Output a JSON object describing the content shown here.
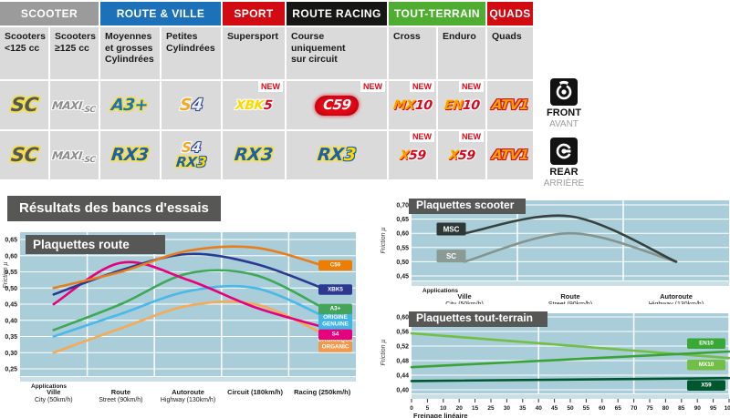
{
  "table": {
    "new_label": "NEW",
    "groups": [
      {
        "label": "SCOOTER",
        "color": "#9c9b9b",
        "span": 2
      },
      {
        "label": "ROUTE & VILLE",
        "color": "#1d71b8",
        "span": 2
      },
      {
        "label": "SPORT",
        "color": "#d20a11",
        "span": 1
      },
      {
        "label": "ROUTE RACING",
        "color": "#161615",
        "span": 1
      },
      {
        "label": "TOUT-TERRAIN",
        "color": "#4fae32",
        "span": 2
      },
      {
        "label": "QUADS",
        "color": "#d20a11",
        "span": 1
      }
    ],
    "subheaders": [
      [
        "Scooters",
        "<125 cc"
      ],
      [
        "Scooters",
        "≥125 cc"
      ],
      [
        "Moyennes",
        "et grosses",
        "Cylindrées"
      ],
      [
        "Petites",
        "Cylindrées"
      ],
      [
        "Supersport"
      ],
      [
        "Course",
        "uniquement",
        "sur circuit"
      ],
      [
        "Cross"
      ],
      [
        "Enduro"
      ],
      [
        "Quads"
      ]
    ],
    "front_row": [
      {
        "rows": [
          [
            {
              "t": "SC",
              "s": "sc"
            }
          ]
        ]
      },
      {
        "rows": [
          [
            {
              "t": "MAXI",
              "s": "maxi"
            },
            {
              "t": "-SC",
              "s": "maxisub"
            }
          ]
        ]
      },
      {
        "rows": [
          [
            {
              "t": "A3+",
              "s": "a3"
            }
          ]
        ]
      },
      {
        "rows": [
          [
            {
              "t": "S",
              "s": "s4s"
            },
            {
              "t": "4",
              "s": "s4f"
            }
          ]
        ]
      },
      {
        "rows": [
          [
            {
              "t": "XBK",
              "s": "xbk"
            },
            {
              "t": "5",
              "s": "red"
            }
          ]
        ],
        "new": true
      },
      {
        "rows": [
          [
            {
              "t": "C59",
              "s": "c59"
            }
          ]
        ],
        "new": true
      },
      {
        "rows": [
          [
            {
              "t": "MX",
              "s": "orange"
            },
            {
              "t": "10",
              "s": "red"
            }
          ]
        ],
        "new": true
      },
      {
        "rows": [
          [
            {
              "t": "EN",
              "s": "orange"
            },
            {
              "t": "10",
              "s": "red"
            }
          ]
        ],
        "new": true
      },
      {
        "rows": [
          [
            {
              "t": "ATV1",
              "s": "atv"
            }
          ]
        ]
      }
    ],
    "rear_row": [
      {
        "rows": [
          [
            {
              "t": "SC",
              "s": "sc"
            }
          ]
        ]
      },
      {
        "rows": [
          [
            {
              "t": "MAXI",
              "s": "maxi"
            },
            {
              "t": "-SC",
              "s": "maxisub"
            }
          ]
        ]
      },
      {
        "rows": [
          [
            {
              "t": "RX",
              "s": "rx"
            },
            {
              "t": "3",
              "s": "rx"
            }
          ]
        ]
      },
      {
        "rows": [
          [
            {
              "t": "S",
              "s": "s4s"
            },
            {
              "t": "4",
              "s": "s4f"
            }
          ],
          [
            {
              "t": "RX",
              "s": "rx"
            },
            {
              "t": "3",
              "s": "3y"
            }
          ]
        ],
        "stack": true
      },
      {
        "rows": [
          [
            {
              "t": "RX",
              "s": "rx"
            },
            {
              "t": "3",
              "s": "rx"
            }
          ]
        ]
      },
      {
        "rows": [
          [
            {
              "t": "RX",
              "s": "rx"
            },
            {
              "t": "3",
              "s": "3y"
            }
          ]
        ]
      },
      {
        "rows": [
          [
            {
              "t": "X",
              "s": "orange"
            },
            {
              "t": "59",
              "s": "red"
            }
          ]
        ],
        "new": true
      },
      {
        "rows": [
          [
            {
              "t": "X",
              "s": "orange"
            },
            {
              "t": "59",
              "s": "red"
            }
          ]
        ],
        "new": true
      },
      {
        "rows": [
          [
            {
              "t": "ATV1",
              "s": "atv"
            }
          ]
        ]
      }
    ]
  },
  "legend": {
    "front": {
      "label": "FRONT",
      "sub": "AVANT"
    },
    "rear": {
      "label": "REAR",
      "sub": "ARRIÈRE"
    }
  },
  "results_title": "Résultats des bancs d'essais",
  "chart_data": [
    {
      "id": "route",
      "type": "line",
      "title": "Plaquettes route",
      "ylabel": "Friction µ",
      "ymin": 0.25,
      "ymax": 0.65,
      "yticks": [
        "0,65",
        "0,60",
        "0,55",
        "0,50",
        "0,45",
        "0,40",
        "0,35",
        "0,30",
        "0,25"
      ],
      "x_mode": "category",
      "applications_label": "Applications",
      "categories": [
        [
          "Ville",
          "City (50km/h)"
        ],
        [
          "Route",
          "Street (90km/h)"
        ],
        [
          "Autoroute",
          "Highway (130km/h)"
        ],
        [
          "Circuit (180km/h)",
          ""
        ],
        [
          "Racing (250km/h)",
          ""
        ]
      ],
      "series": [
        {
          "name": "ORGANIQUE ORGANIC",
          "color": "#f5aa58",
          "label_bg": "#f39a4a",
          "label_lines": [
            "ORGANIQUE",
            "ORGANIC"
          ],
          "label_v": 0.328,
          "values": [
            0.3,
            0.375,
            0.445,
            0.45,
            0.36
          ]
        },
        {
          "name": "ORIGINE GENUINE",
          "color": "#4ab8e8",
          "label_bg": "#41b6e6",
          "label_lines": [
            "ORIGINE",
            "GENUINE"
          ],
          "label_v": 0.398,
          "values": [
            0.35,
            0.42,
            0.49,
            0.5,
            0.415
          ]
        },
        {
          "name": "A3+",
          "color": "#3fa857",
          "label_bg": "#44a45c",
          "label_lines": [
            "A3+"
          ],
          "label_v": 0.435,
          "values": [
            0.37,
            0.45,
            0.545,
            0.54,
            0.44
          ]
        },
        {
          "name": "S4",
          "color": "#e6007e",
          "label_bg": "#e6007e",
          "label_lines": [
            "S4"
          ],
          "label_v": 0.356,
          "values": [
            0.45,
            0.578,
            0.525,
            0.44,
            0.38
          ]
        },
        {
          "name": "XBK5",
          "color": "#2b3990",
          "label_bg": "#2b3990",
          "label_lines": [
            "XBK5"
          ],
          "label_v": 0.495,
          "values": [
            0.48,
            0.555,
            0.605,
            0.575,
            0.5
          ]
        },
        {
          "name": "C59",
          "color": "#e87d1c",
          "label_bg": "#ef7d00",
          "label_lines": [
            "C59"
          ],
          "label_v": 0.57,
          "values": [
            0.5,
            0.55,
            0.615,
            0.625,
            0.57
          ]
        }
      ]
    },
    {
      "id": "scooter",
      "type": "line",
      "title": "Plaquettes scooter",
      "ylabel": "Friction µ",
      "ymin": 0.45,
      "ymax": 0.7,
      "yticks": [
        "0,70",
        "0,65",
        "0,60",
        "0,55",
        "0,50",
        "0,45"
      ],
      "x_mode": "category",
      "applications_label": "Applications",
      "categories": [
        [
          "Ville",
          "City (50km/h)"
        ],
        [
          "Route",
          "Street (90km/h)"
        ],
        [
          "Autoroute",
          "Highway (130km/h)"
        ]
      ],
      "series": [
        {
          "name": "SC",
          "color": "#85948f",
          "inline_label": {
            "text": "SC",
            "bg": "#8c9a94",
            "v": 0.52
          },
          "values": [
            0.5,
            0.6,
            0.5
          ]
        },
        {
          "name": "MSC",
          "color": "#38413e",
          "inline_label": {
            "text": "MSC",
            "bg": "#2f3835",
            "v": 0.615
          },
          "values": [
            0.6,
            0.66,
            0.5
          ]
        }
      ]
    },
    {
      "id": "toutterrain",
      "type": "line",
      "title": "Plaquettes tout-terrain",
      "ylabel": "Friction µ",
      "ymin": 0.4,
      "ymax": 0.6,
      "yticks": [
        "0,60",
        "0,56",
        "0,52",
        "0,48",
        "0,44",
        "0,40"
      ],
      "x_mode": "numeric",
      "xlabel": "Freinage linéaire",
      "xticks": [
        "0",
        "5",
        "10",
        "20",
        "15",
        "25",
        "30",
        "35",
        "40",
        "45",
        "50",
        "55",
        "60",
        "65",
        "70",
        "75",
        "80",
        "85",
        "90",
        "95",
        "100"
      ],
      "series": [
        {
          "name": "MX10",
          "color": "#72bf44",
          "label_bg": "#72bf44",
          "label_lines": [
            "MX10"
          ],
          "label_v": 0.468,
          "values": [
            0.555,
            0.487
          ]
        },
        {
          "name": "EN10",
          "color": "#3aa335",
          "label_bg": "#39a935",
          "label_lines": [
            "EN10"
          ],
          "label_v": 0.527,
          "values": [
            0.462,
            0.505
          ]
        },
        {
          "name": "X59",
          "color": "#00572d",
          "label_bg": "#00572d",
          "label_lines": [
            "X59"
          ],
          "label_v": 0.412,
          "values": [
            0.424,
            0.432
          ]
        }
      ]
    }
  ]
}
